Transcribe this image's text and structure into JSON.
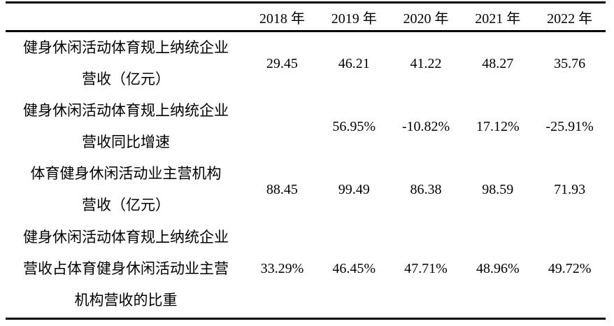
{
  "meta": {
    "background_color": "#ffffff",
    "text_color": "#000000",
    "rule_color": "#000000"
  },
  "table": {
    "header": {
      "row_label": "",
      "years": [
        "2018 年",
        "2019 年",
        "2020 年",
        "2021 年",
        "2022 年"
      ]
    },
    "rows": [
      {
        "label_lines": [
          "健身休闲活动体育规上纳统企业",
          "营收（亿元）"
        ],
        "values": [
          "29.45",
          "46.21",
          "41.22",
          "48.27",
          "35.76"
        ]
      },
      {
        "label_lines": [
          "健身休闲活动体育规上纳统企业",
          "营收同比增速"
        ],
        "values": [
          "",
          "56.95%",
          "-10.82%",
          "17.12%",
          "-25.91%"
        ]
      },
      {
        "label_lines": [
          "体育健身休闲活动业主营机构",
          "营收（亿元）"
        ],
        "values": [
          "88.45",
          "99.49",
          "86.38",
          "98.59",
          "71.93"
        ]
      },
      {
        "label_lines": [
          "健身休闲活动体育规上纳统企业",
          "营收占体育健身休闲活动业主营",
          "机构营收的比重"
        ],
        "values": [
          "33.29%",
          "46.45%",
          "47.71%",
          "48.96%",
          "49.72%"
        ]
      }
    ]
  },
  "chart_data": {
    "type": "table",
    "categories": [
      "2018",
      "2019",
      "2020",
      "2021",
      "2022"
    ],
    "series": [
      {
        "name": "健身休闲活动体育规上纳统企业营收（亿元）",
        "values": [
          29.45,
          46.21,
          41.22,
          48.27,
          35.76
        ]
      },
      {
        "name": "健身休闲活动体育规上纳统企业营收同比增速",
        "values": [
          "",
          "56.95%",
          "-10.82%",
          "17.12%",
          "-25.91%"
        ]
      },
      {
        "name": "体育健身休闲活动业主营机构营收（亿元）",
        "values": [
          88.45,
          99.49,
          86.38,
          98.59,
          71.93
        ]
      },
      {
        "name": "健身休闲活动体育规上纳统企业营收占体育健身休闲活动业主营机构营收的比重",
        "values": [
          "33.29%",
          "46.45%",
          "47.71%",
          "48.96%",
          "49.72%"
        ]
      }
    ]
  }
}
